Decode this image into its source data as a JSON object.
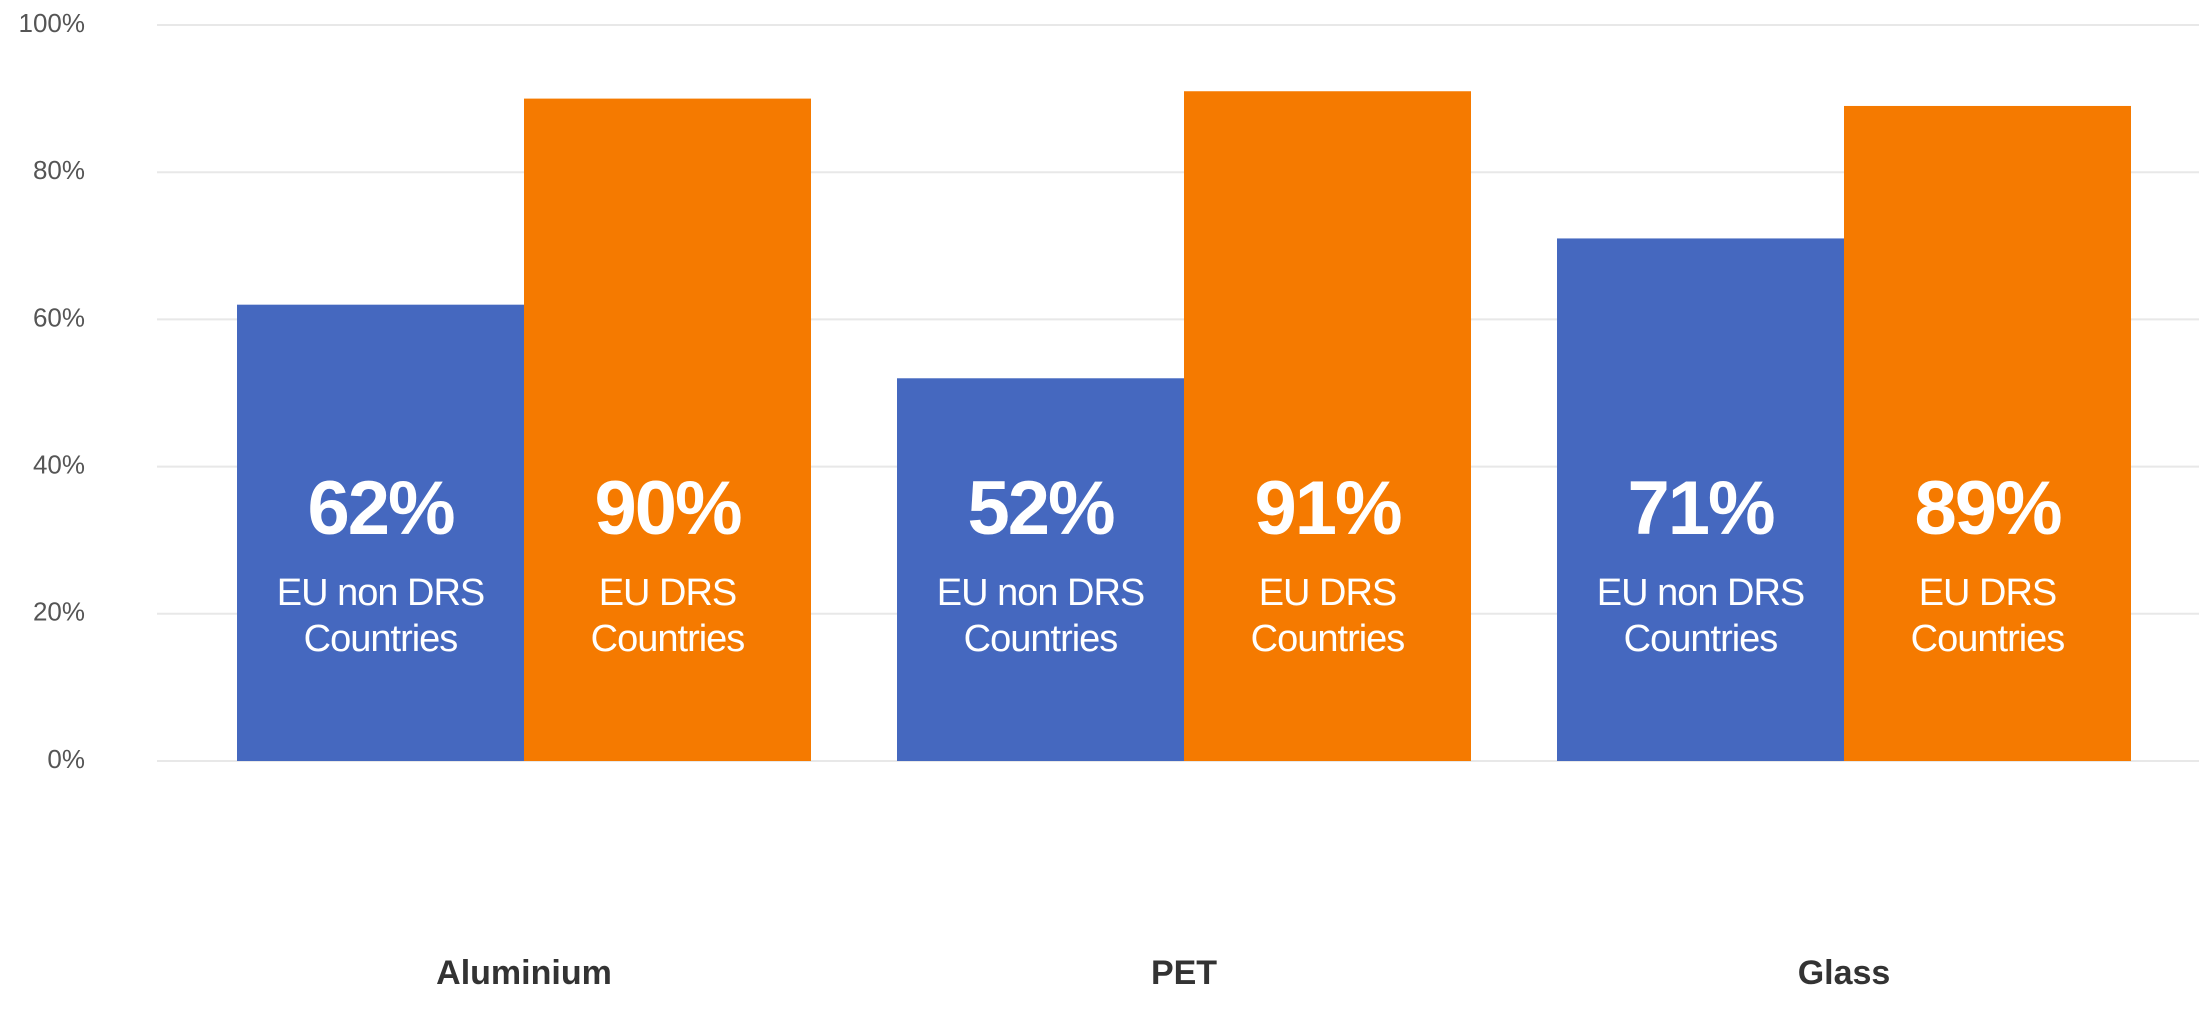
{
  "chart_data": {
    "type": "bar",
    "categories": [
      "Aluminium",
      "PET",
      "Glass"
    ],
    "series": [
      {
        "name": "EU non DRS Countries",
        "color": "#4568bf",
        "values": [
          62,
          52,
          71
        ],
        "value_labels": [
          "62%",
          "52%",
          "71%"
        ]
      },
      {
        "name": "EU DRS Countries",
        "color": "#f57a00",
        "values": [
          90,
          91,
          89
        ],
        "value_labels": [
          "90%",
          "91%",
          "89%"
        ]
      }
    ],
    "ylim": [
      0,
      100
    ],
    "yticks": [
      {
        "value": 0,
        "label": "0%"
      },
      {
        "value": 20,
        "label": "20%"
      },
      {
        "value": 40,
        "label": "40%"
      },
      {
        "value": 60,
        "label": "60%"
      },
      {
        "value": 80,
        "label": "80%"
      },
      {
        "value": 100,
        "label": "100%"
      }
    ],
    "grid": true
  }
}
